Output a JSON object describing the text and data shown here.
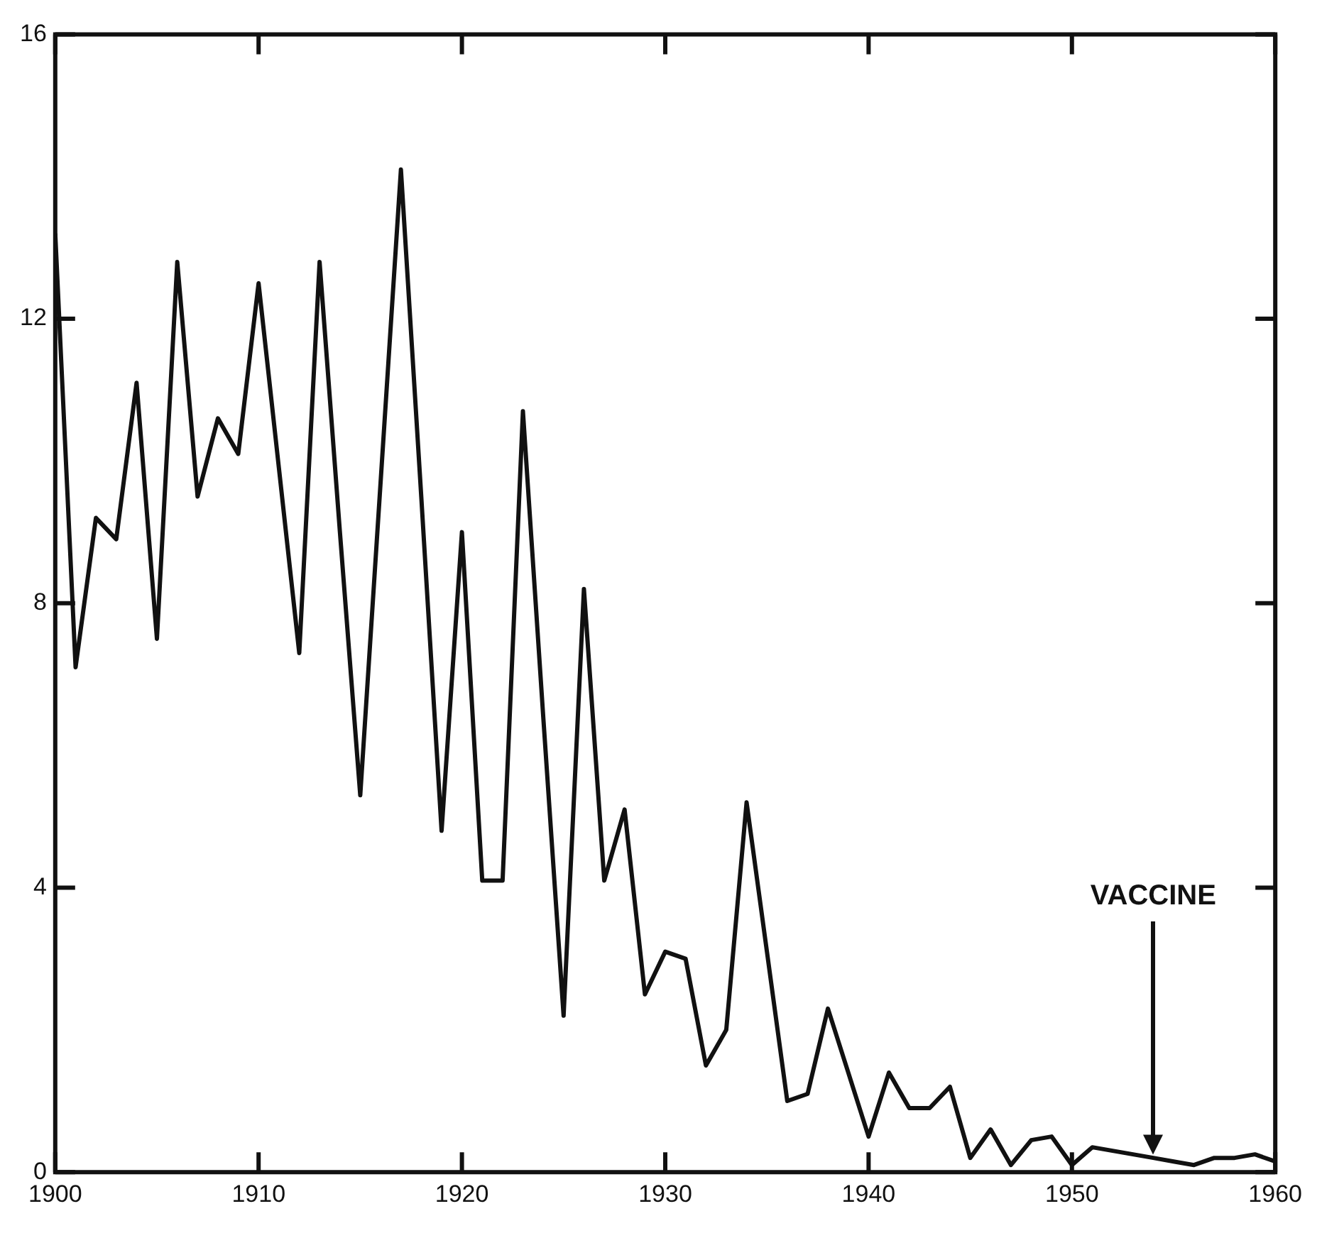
{
  "chart_data": {
    "type": "line",
    "x": [
      1900,
      1901,
      1902,
      1903,
      1904,
      1905,
      1906,
      1907,
      1908,
      1909,
      1910,
      1911,
      1912,
      1913,
      1914,
      1915,
      1916,
      1917,
      1918,
      1919,
      1920,
      1921,
      1922,
      1923,
      1924,
      1925,
      1926,
      1927,
      1928,
      1929,
      1930,
      1931,
      1932,
      1933,
      1934,
      1935,
      1936,
      1937,
      1938,
      1939,
      1940,
      1941,
      1942,
      1943,
      1944,
      1945,
      1946,
      1947,
      1948,
      1949,
      1950,
      1951,
      1952,
      1953,
      1954,
      1955,
      1956,
      1957,
      1958,
      1959,
      1960
    ],
    "series": [
      {
        "color": "#111111",
        "values": [
          13.2,
          7.1,
          9.2,
          8.9,
          11.1,
          7.5,
          12.8,
          9.5,
          10.6,
          10.1,
          12.5,
          9.9,
          7.3,
          12.8,
          9.0,
          5.3,
          9.7,
          14.1,
          9.5,
          4.8,
          9.0,
          4.1,
          4.1,
          10.7,
          6.4,
          2.2,
          8.2,
          4.1,
          5.1,
          2.5,
          3.1,
          3.0,
          1.5,
          2.0,
          5.2,
          3.1,
          1.0,
          1.1,
          2.3,
          1.4,
          0.5,
          1.4,
          0.9,
          0.9,
          1.2,
          0.2,
          0.6,
          0.1,
          0.45,
          0.5,
          0.1,
          0.35,
          0.3,
          0.25,
          0.2,
          0.15,
          0.1,
          0.2,
          0.2,
          0.25,
          0.15
        ]
      }
    ],
    "xlim": [
      1900,
      1960
    ],
    "xticks": [
      1900,
      1910,
      1920,
      1930,
      1940,
      1950,
      1960
    ],
    "ylim": [
      0,
      16
    ],
    "yticks": [
      0,
      4,
      8,
      12,
      16
    ],
    "grid": false,
    "legend": false,
    "marker": "none",
    "line_style": "solid",
    "annotations": [
      "VACCINE"
    ]
  }
}
